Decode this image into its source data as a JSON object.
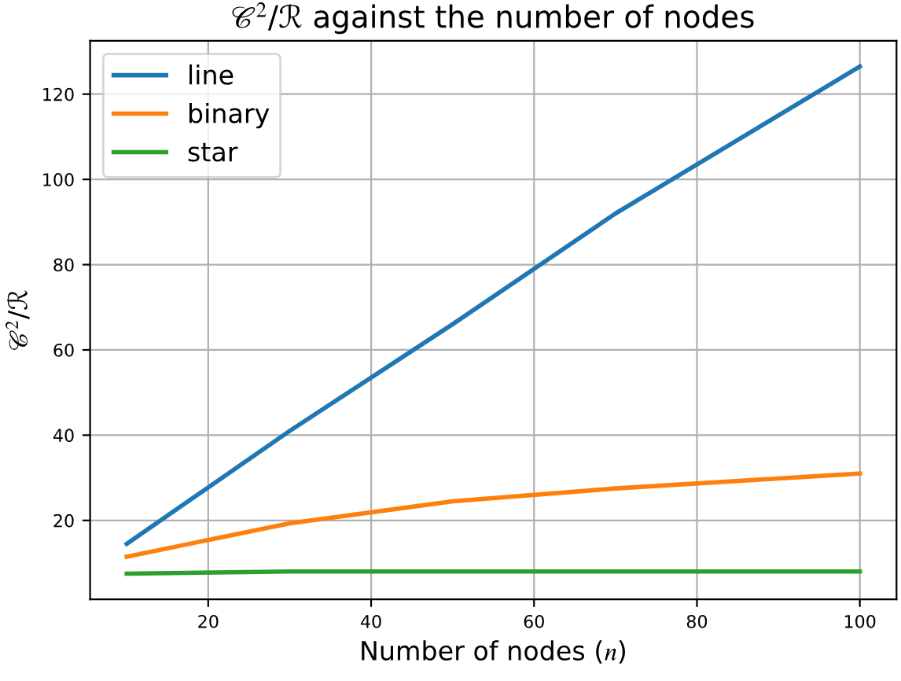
{
  "chart_data": {
    "type": "line",
    "title": "𝒞$^{2}$/ℛ against the number of nodes",
    "xlabel": "Number of nodes (𝑛)",
    "ylabel": "𝒞$^{2}$/ℛ",
    "x": [
      10,
      30,
      50,
      70,
      100
    ],
    "series": [
      {
        "name": "line",
        "color": "#1f77b4",
        "values": [
          14.5,
          41,
          66,
          92,
          126.5
        ]
      },
      {
        "name": "binary",
        "color": "#ff7f0e",
        "values": [
          11.5,
          19.3,
          24.5,
          27.5,
          31
        ]
      },
      {
        "name": "star",
        "color": "#2ca02c",
        "values": [
          7.5,
          8,
          8,
          8,
          8
        ]
      }
    ],
    "xlim": [
      5.5,
      104.5
    ],
    "ylim": [
      1.5,
      132.5
    ],
    "xticks": [
      20,
      40,
      60,
      80,
      100
    ],
    "yticks": [
      20,
      40,
      60,
      80,
      100,
      120
    ],
    "grid": true,
    "legend": "top left",
    "marker": "none",
    "line_style": "solid"
  }
}
